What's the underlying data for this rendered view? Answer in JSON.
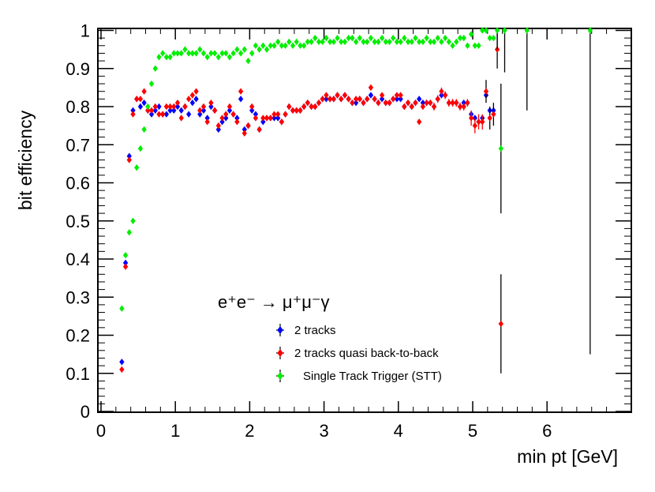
{
  "chart_data": {
    "type": "scatter",
    "title": "",
    "xlabel": "min pt [GeV]",
    "ylabel": "bit efficiency",
    "xlim": [
      0,
      7
    ],
    "ylim": [
      0,
      1.02
    ],
    "x_ticks": [
      0,
      1,
      2,
      3,
      4,
      5,
      6
    ],
    "x_tick_labels": [
      "0",
      "1",
      "2",
      "3",
      "4",
      "5",
      "6"
    ],
    "y_ticks": [
      0,
      0.1,
      0.2,
      0.3,
      0.4,
      0.5,
      0.6,
      0.7,
      0.8,
      0.9,
      1
    ],
    "y_tick_labels": [
      "0",
      "0.1",
      "0.2",
      "0.3",
      "0.4",
      "0.5",
      "0.6",
      "0.7",
      "0.8",
      "0.9",
      "1"
    ],
    "annotation": "e⁺e⁻ → μ⁺μ⁻γ",
    "legend_position": "lower-center",
    "series": [
      {
        "name": "2 tracks",
        "color": "#0000ff",
        "x": [
          0.28,
          0.33,
          0.38,
          0.43,
          0.48,
          0.53,
          0.58,
          0.63,
          0.68,
          0.73,
          0.78,
          0.83,
          0.88,
          0.93,
          0.98,
          1.03,
          1.08,
          1.13,
          1.18,
          1.23,
          1.28,
          1.33,
          1.38,
          1.43,
          1.48,
          1.53,
          1.58,
          1.63,
          1.68,
          1.73,
          1.78,
          1.83,
          1.88,
          1.93,
          1.98,
          2.03,
          2.08,
          2.13,
          2.18,
          2.23,
          2.28,
          2.33,
          2.38,
          2.43,
          2.48,
          2.53,
          2.58,
          2.63,
          2.68,
          2.73,
          2.78,
          2.83,
          2.88,
          2.93,
          2.98,
          3.03,
          3.08,
          3.13,
          3.18,
          3.23,
          3.28,
          3.33,
          3.38,
          3.43,
          3.48,
          3.53,
          3.58,
          3.63,
          3.68,
          3.73,
          3.78,
          3.83,
          3.88,
          3.93,
          3.98,
          4.03,
          4.08,
          4.13,
          4.18,
          4.23,
          4.28,
          4.33,
          4.38,
          4.43,
          4.48,
          4.53,
          4.58,
          4.63,
          4.68,
          4.73,
          4.78,
          4.83,
          4.88,
          4.93,
          4.98,
          5.03,
          5.08,
          5.13,
          5.18,
          5.23,
          5.28
        ],
        "y": [
          0.13,
          0.39,
          0.67,
          0.79,
          0.82,
          0.8,
          0.81,
          0.79,
          0.78,
          0.79,
          0.8,
          0.78,
          0.78,
          0.79,
          0.79,
          0.8,
          0.79,
          0.8,
          0.78,
          0.81,
          0.82,
          0.78,
          0.79,
          0.77,
          0.8,
          0.79,
          0.74,
          0.76,
          0.77,
          0.79,
          0.78,
          0.77,
          0.82,
          0.74,
          0.75,
          0.79,
          0.78,
          0.74,
          0.76,
          0.77,
          0.77,
          0.77,
          0.77,
          0.76,
          0.78,
          0.8,
          0.79,
          0.79,
          0.79,
          0.8,
          0.81,
          0.8,
          0.8,
          0.81,
          0.82,
          0.82,
          0.82,
          0.82,
          0.83,
          0.82,
          0.83,
          0.82,
          0.81,
          0.81,
          0.82,
          0.81,
          0.82,
          0.83,
          0.82,
          0.81,
          0.82,
          0.81,
          0.81,
          0.82,
          0.82,
          0.82,
          0.8,
          0.81,
          0.8,
          0.81,
          0.82,
          0.81,
          0.81,
          0.81,
          0.8,
          0.82,
          0.83,
          0.83,
          0.81,
          0.81,
          0.81,
          0.8,
          0.81,
          0.81,
          0.78,
          0.77,
          0.76,
          0.77,
          0.83,
          0.79,
          0.79
        ]
      },
      {
        "name": "2 tracks quasi back-to-back",
        "color": "#ff0000",
        "x": [
          0.28,
          0.33,
          0.38,
          0.43,
          0.48,
          0.53,
          0.58,
          0.63,
          0.68,
          0.73,
          0.78,
          0.83,
          0.88,
          0.93,
          0.98,
          1.03,
          1.08,
          1.13,
          1.18,
          1.23,
          1.28,
          1.33,
          1.38,
          1.43,
          1.48,
          1.53,
          1.58,
          1.63,
          1.68,
          1.73,
          1.78,
          1.83,
          1.88,
          1.93,
          1.98,
          2.03,
          2.08,
          2.13,
          2.18,
          2.23,
          2.28,
          2.33,
          2.38,
          2.43,
          2.48,
          2.53,
          2.58,
          2.63,
          2.68,
          2.73,
          2.78,
          2.83,
          2.88,
          2.93,
          2.98,
          3.03,
          3.08,
          3.13,
          3.18,
          3.23,
          3.28,
          3.33,
          3.38,
          3.43,
          3.48,
          3.53,
          3.58,
          3.63,
          3.68,
          3.73,
          3.78,
          3.83,
          3.88,
          3.93,
          3.98,
          4.03,
          4.08,
          4.13,
          4.18,
          4.23,
          4.28,
          4.33,
          4.38,
          4.43,
          4.48,
          4.53,
          4.58,
          4.63,
          4.68,
          4.73,
          4.78,
          4.83,
          4.88,
          4.93,
          4.98,
          5.03,
          5.08,
          5.13,
          5.18,
          5.23,
          5.28,
          5.33,
          5.38
        ],
        "y": [
          0.11,
          0.38,
          0.66,
          0.78,
          0.82,
          0.82,
          0.84,
          0.79,
          0.79,
          0.8,
          0.78,
          0.78,
          0.8,
          0.8,
          0.8,
          0.81,
          0.77,
          0.8,
          0.82,
          0.83,
          0.84,
          0.79,
          0.8,
          0.76,
          0.81,
          0.79,
          0.75,
          0.77,
          0.78,
          0.8,
          0.78,
          0.76,
          0.84,
          0.73,
          0.75,
          0.8,
          0.77,
          0.74,
          0.77,
          0.77,
          0.77,
          0.78,
          0.78,
          0.76,
          0.78,
          0.8,
          0.79,
          0.79,
          0.79,
          0.8,
          0.81,
          0.8,
          0.8,
          0.81,
          0.82,
          0.83,
          0.82,
          0.82,
          0.83,
          0.82,
          0.83,
          0.82,
          0.81,
          0.82,
          0.82,
          0.81,
          0.82,
          0.85,
          0.82,
          0.81,
          0.83,
          0.81,
          0.81,
          0.82,
          0.83,
          0.83,
          0.8,
          0.81,
          0.8,
          0.81,
          0.76,
          0.8,
          0.81,
          0.81,
          0.8,
          0.82,
          0.84,
          0.83,
          0.81,
          0.81,
          0.81,
          0.8,
          0.8,
          0.81,
          0.77,
          0.75,
          0.76,
          0.76,
          0.84,
          0.77,
          0.78,
          0.95,
          0.23
        ],
        "err": [
          0.005,
          0.005,
          0.005,
          0.005,
          0.005,
          0.005,
          0.005,
          0.005,
          0.005,
          0.005,
          0.005,
          0.005,
          0.005,
          0.005,
          0.005,
          0.005,
          0.005,
          0.005,
          0.005,
          0.005,
          0.005,
          0.005,
          0.005,
          0.005,
          0.005,
          0.005,
          0.005,
          0.005,
          0.005,
          0.005,
          0.005,
          0.005,
          0.005,
          0.005,
          0.005,
          0.005,
          0.005,
          0.005,
          0.005,
          0.005,
          0.005,
          0.005,
          0.005,
          0.005,
          0.005,
          0.005,
          0.005,
          0.005,
          0.005,
          0.005,
          0.005,
          0.005,
          0.005,
          0.005,
          0.005,
          0.005,
          0.005,
          0.005,
          0.005,
          0.005,
          0.005,
          0.005,
          0.005,
          0.005,
          0.005,
          0.005,
          0.005,
          0.005,
          0.005,
          0.005,
          0.005,
          0.005,
          0.005,
          0.005,
          0.005,
          0.005,
          0.005,
          0.005,
          0.005,
          0.005,
          0.005,
          0.005,
          0.005,
          0.005,
          0.01,
          0.01,
          0.01,
          0.01,
          0.01,
          0.01,
          0.01,
          0.01,
          0.01,
          0.01,
          0.02,
          0.02,
          0.02,
          0.02,
          0.03,
          0.03,
          0.03,
          0.05,
          0.13
        ]
      },
      {
        "name": "Single Track Trigger (STT)",
        "color": "#00ee00",
        "x": [
          0.28,
          0.33,
          0.38,
          0.43,
          0.48,
          0.53,
          0.58,
          0.63,
          0.68,
          0.73,
          0.78,
          0.83,
          0.88,
          0.93,
          0.98,
          1.03,
          1.08,
          1.13,
          1.18,
          1.23,
          1.28,
          1.33,
          1.38,
          1.43,
          1.48,
          1.53,
          1.58,
          1.63,
          1.68,
          1.73,
          1.78,
          1.83,
          1.88,
          1.93,
          1.98,
          2.03,
          2.08,
          2.13,
          2.18,
          2.23,
          2.28,
          2.33,
          2.38,
          2.43,
          2.48,
          2.53,
          2.58,
          2.63,
          2.68,
          2.73,
          2.78,
          2.83,
          2.88,
          2.93,
          2.98,
          3.03,
          3.08,
          3.13,
          3.18,
          3.23,
          3.28,
          3.33,
          3.38,
          3.43,
          3.48,
          3.53,
          3.58,
          3.63,
          3.68,
          3.73,
          3.78,
          3.83,
          3.88,
          3.93,
          3.98,
          4.03,
          4.08,
          4.13,
          4.18,
          4.23,
          4.28,
          4.33,
          4.38,
          4.43,
          4.48,
          4.53,
          4.58,
          4.63,
          4.68,
          4.73,
          4.78,
          4.83,
          4.88,
          4.93,
          4.98,
          5.03,
          5.08,
          5.13,
          5.18,
          5.23,
          5.28,
          5.33,
          5.38,
          5.43,
          5.73,
          6.58
        ],
        "y": [
          0.27,
          0.41,
          0.47,
          0.5,
          0.64,
          0.69,
          0.74,
          0.8,
          0.86,
          0.9,
          0.93,
          0.94,
          0.93,
          0.93,
          0.94,
          0.94,
          0.94,
          0.95,
          0.94,
          0.94,
          0.94,
          0.95,
          0.94,
          0.93,
          0.94,
          0.94,
          0.93,
          0.94,
          0.94,
          0.93,
          0.94,
          0.95,
          0.94,
          0.95,
          0.92,
          0.94,
          0.96,
          0.95,
          0.96,
          0.95,
          0.96,
          0.96,
          0.97,
          0.96,
          0.96,
          0.97,
          0.96,
          0.97,
          0.96,
          0.96,
          0.97,
          0.97,
          0.98,
          0.97,
          0.97,
          0.98,
          0.97,
          0.97,
          0.98,
          0.97,
          0.97,
          0.98,
          0.98,
          0.97,
          0.98,
          0.97,
          0.97,
          0.98,
          0.97,
          0.97,
          0.98,
          0.97,
          0.97,
          0.98,
          0.97,
          0.97,
          0.98,
          0.97,
          0.97,
          0.98,
          0.97,
          0.97,
          0.98,
          0.97,
          0.97,
          0.98,
          0.97,
          0.98,
          0.97,
          0.96,
          0.97,
          0.98,
          0.98,
          0.96,
          0.99,
          0.96,
          0.96,
          1.0,
          1.0,
          0.98,
          0.98,
          1.0,
          0.69,
          1.0,
          1.0,
          1.0
        ],
        "err": [
          0.004,
          0.004,
          0.004,
          0.004,
          0.004,
          0.004,
          0.004,
          0.004,
          0.004,
          0.004,
          0.004,
          0.004,
          0.004,
          0.004,
          0.004,
          0.004,
          0.004,
          0.004,
          0.004,
          0.004,
          0.004,
          0.004,
          0.004,
          0.004,
          0.004,
          0.004,
          0.004,
          0.004,
          0.004,
          0.004,
          0.004,
          0.004,
          0.004,
          0.004,
          0.004,
          0.004,
          0.004,
          0.004,
          0.004,
          0.004,
          0.004,
          0.004,
          0.004,
          0.004,
          0.004,
          0.004,
          0.004,
          0.004,
          0.004,
          0.004,
          0.004,
          0.004,
          0.004,
          0.004,
          0.004,
          0.004,
          0.004,
          0.004,
          0.004,
          0.004,
          0.004,
          0.004,
          0.004,
          0.004,
          0.004,
          0.004,
          0.004,
          0.004,
          0.004,
          0.004,
          0.004,
          0.004,
          0.004,
          0.004,
          0.004,
          0.004,
          0.004,
          0.004,
          0.004,
          0.004,
          0.004,
          0.004,
          0.004,
          0.004,
          0.004,
          0.004,
          0.004,
          0.004,
          0.004,
          0.004,
          0.004,
          0.004,
          0.004,
          0.004,
          0.004,
          0.004,
          0.004,
          0.004,
          0.004,
          0.004,
          0.004,
          0.05,
          0.17,
          0.11,
          0.21,
          0.85
        ]
      }
    ]
  }
}
